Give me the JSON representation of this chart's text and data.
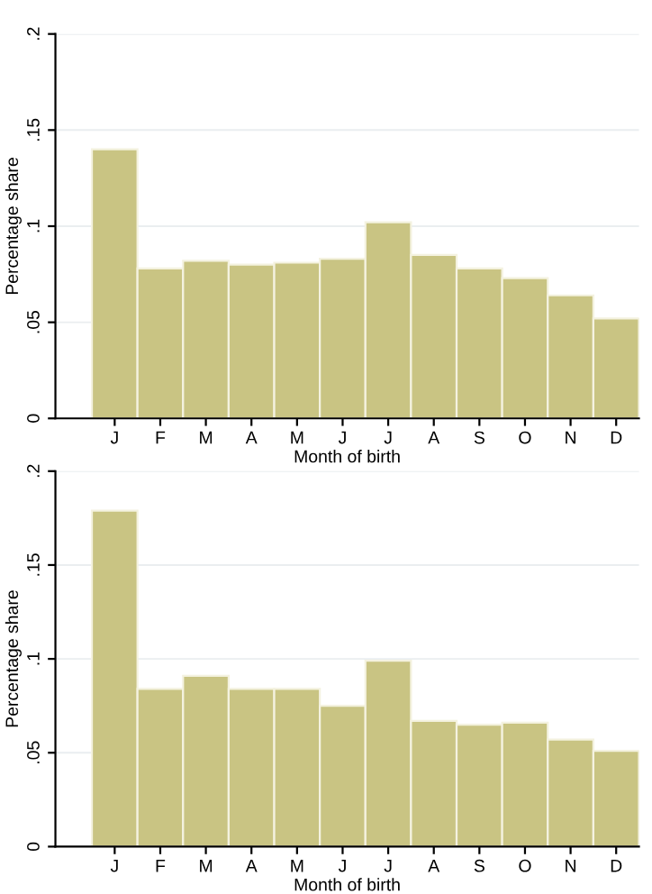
{
  "chart_data": [
    {
      "type": "bar",
      "xlabel": "Month of birth",
      "ylabel": "Percentage share",
      "categories": [
        "J",
        "F",
        "M",
        "A",
        "M",
        "J",
        "J",
        "A",
        "S",
        "O",
        "N",
        "D"
      ],
      "values": [
        0.14,
        0.078,
        0.082,
        0.08,
        0.081,
        0.083,
        0.102,
        0.085,
        0.078,
        0.073,
        0.064,
        0.052
      ],
      "color": "#c9c483",
      "ylim": [
        0,
        0.2
      ],
      "yticks": [
        {
          "value": 0,
          "label": "0"
        },
        {
          "value": 0.05,
          "label": ".05"
        },
        {
          "value": 0.1,
          "label": ".1"
        },
        {
          "value": 0.15,
          "label": ".15"
        },
        {
          "value": 0.2,
          "label": ".2"
        }
      ],
      "grid": "y"
    },
    {
      "type": "bar",
      "xlabel": "Month of birth",
      "ylabel": "Percentage share",
      "categories": [
        "J",
        "F",
        "M",
        "A",
        "M",
        "J",
        "J",
        "A",
        "S",
        "O",
        "N",
        "D"
      ],
      "values": [
        0.179,
        0.084,
        0.091,
        0.084,
        0.084,
        0.075,
        0.099,
        0.067,
        0.065,
        0.066,
        0.057,
        0.051
      ],
      "color": "#c9c483",
      "ylim": [
        0,
        0.2
      ],
      "yticks": [
        {
          "value": 0,
          "label": "0"
        },
        {
          "value": 0.05,
          "label": ".05"
        },
        {
          "value": 0.1,
          "label": ".1"
        },
        {
          "value": 0.15,
          "label": ".15"
        },
        {
          "value": 0.2,
          "label": ".2"
        }
      ],
      "grid": "y"
    }
  ]
}
